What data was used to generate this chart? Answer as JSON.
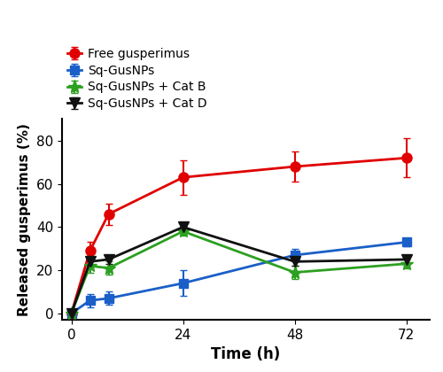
{
  "series": [
    {
      "label": "Free gusperimus",
      "color": "#e00000",
      "marker": "o",
      "marker_size": 8,
      "x": [
        0,
        4,
        8,
        24,
        48,
        72
      ],
      "y": [
        0,
        29,
        46,
        63,
        68,
        72
      ],
      "yerr": [
        0,
        4,
        5,
        8,
        7,
        9
      ]
    },
    {
      "label": "Sq-GusNPs",
      "color": "#1a5fc8",
      "marker": "s",
      "marker_size": 7,
      "x": [
        0,
        4,
        8,
        24,
        48,
        72
      ],
      "y": [
        0,
        6,
        7,
        14,
        27,
        33
      ],
      "yerr": [
        0,
        3,
        3,
        6,
        3,
        2
      ]
    },
    {
      "label": "Sq-GusNPs + Cat B",
      "color": "#2ca020",
      "marker": "*",
      "marker_size": 11,
      "x": [
        0,
        4,
        8,
        24,
        48,
        72
      ],
      "y": [
        0,
        22,
        21,
        38,
        19,
        23
      ],
      "yerr": [
        0,
        3,
        3,
        2,
        3,
        2
      ]
    },
    {
      "label": "Sq-GusNPs + Cat D",
      "color": "#111111",
      "marker": "v",
      "marker_size": 9,
      "x": [
        0,
        4,
        8,
        24,
        48,
        72
      ],
      "y": [
        0,
        24,
        25,
        40,
        24,
        25
      ],
      "yerr": [
        0,
        2,
        2,
        2,
        2,
        2
      ]
    }
  ],
  "xlabel": "Time (h)",
  "ylabel": "Released gusperimus (%)",
  "xlim": [
    -2,
    77
  ],
  "ylim": [
    -3,
    90
  ],
  "xticks": [
    0,
    24,
    48,
    72
  ],
  "yticks": [
    0,
    20,
    40,
    60,
    80
  ],
  "figsize": [
    5.0,
    4.2
  ],
  "dpi": 100,
  "linewidth": 2.0,
  "capsize": 3
}
